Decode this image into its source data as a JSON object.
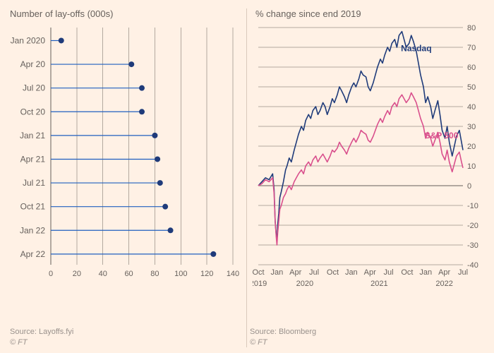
{
  "background_color": "#fff1e5",
  "left_panel": {
    "title": "Number of lay-offs (000s)",
    "type": "lollipop",
    "categories": [
      "Jan 2020",
      "Apr 20",
      "Jul 20",
      "Oct 20",
      "Jan 21",
      "Apr 21",
      "Jul 21",
      "Oct 21",
      "Jan 22",
      "Apr 22"
    ],
    "values": [
      8,
      62,
      70,
      70,
      80,
      82,
      84,
      88,
      92,
      125
    ],
    "xlim": [
      0,
      140
    ],
    "xtick_step": 20,
    "stem_color": "#1f5fbf",
    "dot_color": "#1f3b7a",
    "dot_radius": 4,
    "grid_color": "#b3a99f",
    "label_fontsize": 12,
    "tick_fontsize": 11,
    "source_label": "Source: Layoffs.fyi",
    "copyright": "© FT"
  },
  "right_panel": {
    "title": "% change since end 2019",
    "type": "line",
    "ylim": [
      -40,
      80
    ],
    "ytick_step": 10,
    "grid_color": "#b3a99f",
    "label_fontsize": 12,
    "tick_fontsize": 11,
    "x_axis": {
      "year_labels": [
        "2019",
        "2020",
        "2021",
        "2022"
      ],
      "month_ticks_2019": [
        "Oct"
      ],
      "month_ticks_year": [
        "Jan",
        "Apr",
        "Jul",
        "Oct"
      ],
      "month_ticks_2022": [
        "Jan",
        "Apr",
        "Jul"
      ]
    },
    "series": [
      {
        "name": "Nasdaq",
        "label": "Nasdaq",
        "color": "#1f3b7a",
        "label_pos": {
          "x_months": 22,
          "y_val": 68
        },
        "data": [
          [
            0,
            0
          ],
          [
            0.5,
            2
          ],
          [
            1,
            4
          ],
          [
            1.5,
            3
          ],
          [
            2,
            6
          ],
          [
            2.2,
            -2
          ],
          [
            2.35,
            -18
          ],
          [
            2.5,
            -25
          ],
          [
            2.6,
            -28
          ],
          [
            2.7,
            -20
          ],
          [
            2.85,
            -14
          ],
          [
            3,
            -6
          ],
          [
            3.2,
            -3
          ],
          [
            3.5,
            2
          ],
          [
            3.8,
            8
          ],
          [
            4,
            10
          ],
          [
            4.3,
            14
          ],
          [
            4.6,
            12
          ],
          [
            5,
            18
          ],
          [
            5.3,
            22
          ],
          [
            5.6,
            26
          ],
          [
            6,
            30
          ],
          [
            6.3,
            28
          ],
          [
            6.6,
            33
          ],
          [
            7,
            36
          ],
          [
            7.3,
            34
          ],
          [
            7.6,
            38
          ],
          [
            8,
            40
          ],
          [
            8.3,
            36
          ],
          [
            8.6,
            38
          ],
          [
            9,
            42
          ],
          [
            9.3,
            40
          ],
          [
            9.6,
            36
          ],
          [
            10,
            40
          ],
          [
            10.3,
            44
          ],
          [
            10.6,
            42
          ],
          [
            11,
            46
          ],
          [
            11.3,
            50
          ],
          [
            11.6,
            48
          ],
          [
            12,
            45
          ],
          [
            12.3,
            42
          ],
          [
            12.6,
            46
          ],
          [
            13,
            50
          ],
          [
            13.3,
            52
          ],
          [
            13.6,
            50
          ],
          [
            14,
            54
          ],
          [
            14.3,
            58
          ],
          [
            14.6,
            56
          ],
          [
            15,
            55
          ],
          [
            15.3,
            50
          ],
          [
            15.6,
            48
          ],
          [
            16,
            52
          ],
          [
            16.3,
            56
          ],
          [
            16.6,
            60
          ],
          [
            17,
            64
          ],
          [
            17.3,
            62
          ],
          [
            17.6,
            66
          ],
          [
            18,
            70
          ],
          [
            18.3,
            68
          ],
          [
            18.6,
            72
          ],
          [
            19,
            74
          ],
          [
            19.3,
            70
          ],
          [
            19.6,
            76
          ],
          [
            20,
            78
          ],
          [
            20.3,
            74
          ],
          [
            20.6,
            70
          ],
          [
            21,
            72
          ],
          [
            21.3,
            76
          ],
          [
            21.6,
            73
          ],
          [
            22,
            68
          ],
          [
            22.3,
            62
          ],
          [
            22.6,
            56
          ],
          [
            23,
            50
          ],
          [
            23.3,
            42
          ],
          [
            23.6,
            45
          ],
          [
            24,
            40
          ],
          [
            24.3,
            34
          ],
          [
            24.6,
            38
          ],
          [
            25,
            43
          ],
          [
            25.3,
            36
          ],
          [
            25.6,
            28
          ],
          [
            26,
            24
          ],
          [
            26.3,
            30
          ],
          [
            26.6,
            22
          ],
          [
            27,
            15
          ],
          [
            27.3,
            20
          ],
          [
            27.6,
            25
          ],
          [
            28,
            28
          ],
          [
            28.3,
            22
          ],
          [
            28.5,
            18
          ]
        ]
      },
      {
        "name": "S&P 500",
        "label": "S&P 500",
        "color": "#d94f8c",
        "label_pos": {
          "x_months": 25.5,
          "y_val": 24
        },
        "data": [
          [
            0,
            0
          ],
          [
            0.5,
            1
          ],
          [
            1,
            3
          ],
          [
            1.5,
            2
          ],
          [
            2,
            4
          ],
          [
            2.2,
            -4
          ],
          [
            2.35,
            -18
          ],
          [
            2.5,
            -26
          ],
          [
            2.6,
            -30
          ],
          [
            2.7,
            -24
          ],
          [
            2.85,
            -18
          ],
          [
            3,
            -12
          ],
          [
            3.2,
            -10
          ],
          [
            3.5,
            -6
          ],
          [
            3.8,
            -4
          ],
          [
            4,
            -2
          ],
          [
            4.3,
            0
          ],
          [
            4.6,
            -2
          ],
          [
            5,
            2
          ],
          [
            5.3,
            4
          ],
          [
            5.6,
            6
          ],
          [
            6,
            8
          ],
          [
            6.3,
            6
          ],
          [
            6.6,
            10
          ],
          [
            7,
            12
          ],
          [
            7.3,
            10
          ],
          [
            7.6,
            13
          ],
          [
            8,
            15
          ],
          [
            8.3,
            12
          ],
          [
            8.6,
            14
          ],
          [
            9,
            16
          ],
          [
            9.3,
            14
          ],
          [
            9.6,
            12
          ],
          [
            10,
            15
          ],
          [
            10.3,
            18
          ],
          [
            10.6,
            17
          ],
          [
            11,
            19
          ],
          [
            11.3,
            22
          ],
          [
            11.6,
            20
          ],
          [
            12,
            18
          ],
          [
            12.3,
            16
          ],
          [
            12.6,
            19
          ],
          [
            13,
            22
          ],
          [
            13.3,
            24
          ],
          [
            13.6,
            22
          ],
          [
            14,
            25
          ],
          [
            14.3,
            28
          ],
          [
            14.6,
            27
          ],
          [
            15,
            26
          ],
          [
            15.3,
            23
          ],
          [
            15.6,
            22
          ],
          [
            16,
            25
          ],
          [
            16.3,
            28
          ],
          [
            16.6,
            31
          ],
          [
            17,
            34
          ],
          [
            17.3,
            32
          ],
          [
            17.6,
            35
          ],
          [
            18,
            38
          ],
          [
            18.3,
            36
          ],
          [
            18.6,
            40
          ],
          [
            19,
            42
          ],
          [
            19.3,
            40
          ],
          [
            19.6,
            44
          ],
          [
            20,
            46
          ],
          [
            20.3,
            44
          ],
          [
            20.6,
            42
          ],
          [
            21,
            44
          ],
          [
            21.3,
            47
          ],
          [
            21.6,
            45
          ],
          [
            22,
            42
          ],
          [
            22.3,
            38
          ],
          [
            22.6,
            34
          ],
          [
            23,
            30
          ],
          [
            23.3,
            24
          ],
          [
            23.6,
            27
          ],
          [
            24,
            24
          ],
          [
            24.3,
            20
          ],
          [
            24.6,
            23
          ],
          [
            25,
            27
          ],
          [
            25.3,
            22
          ],
          [
            25.6,
            16
          ],
          [
            26,
            13
          ],
          [
            26.3,
            18
          ],
          [
            26.6,
            12
          ],
          [
            27,
            7
          ],
          [
            27.3,
            11
          ],
          [
            27.6,
            15
          ],
          [
            28,
            17
          ],
          [
            28.3,
            12
          ],
          [
            28.5,
            9
          ]
        ]
      }
    ],
    "source_label": "Source: Bloomberg",
    "copyright": "© FT"
  }
}
